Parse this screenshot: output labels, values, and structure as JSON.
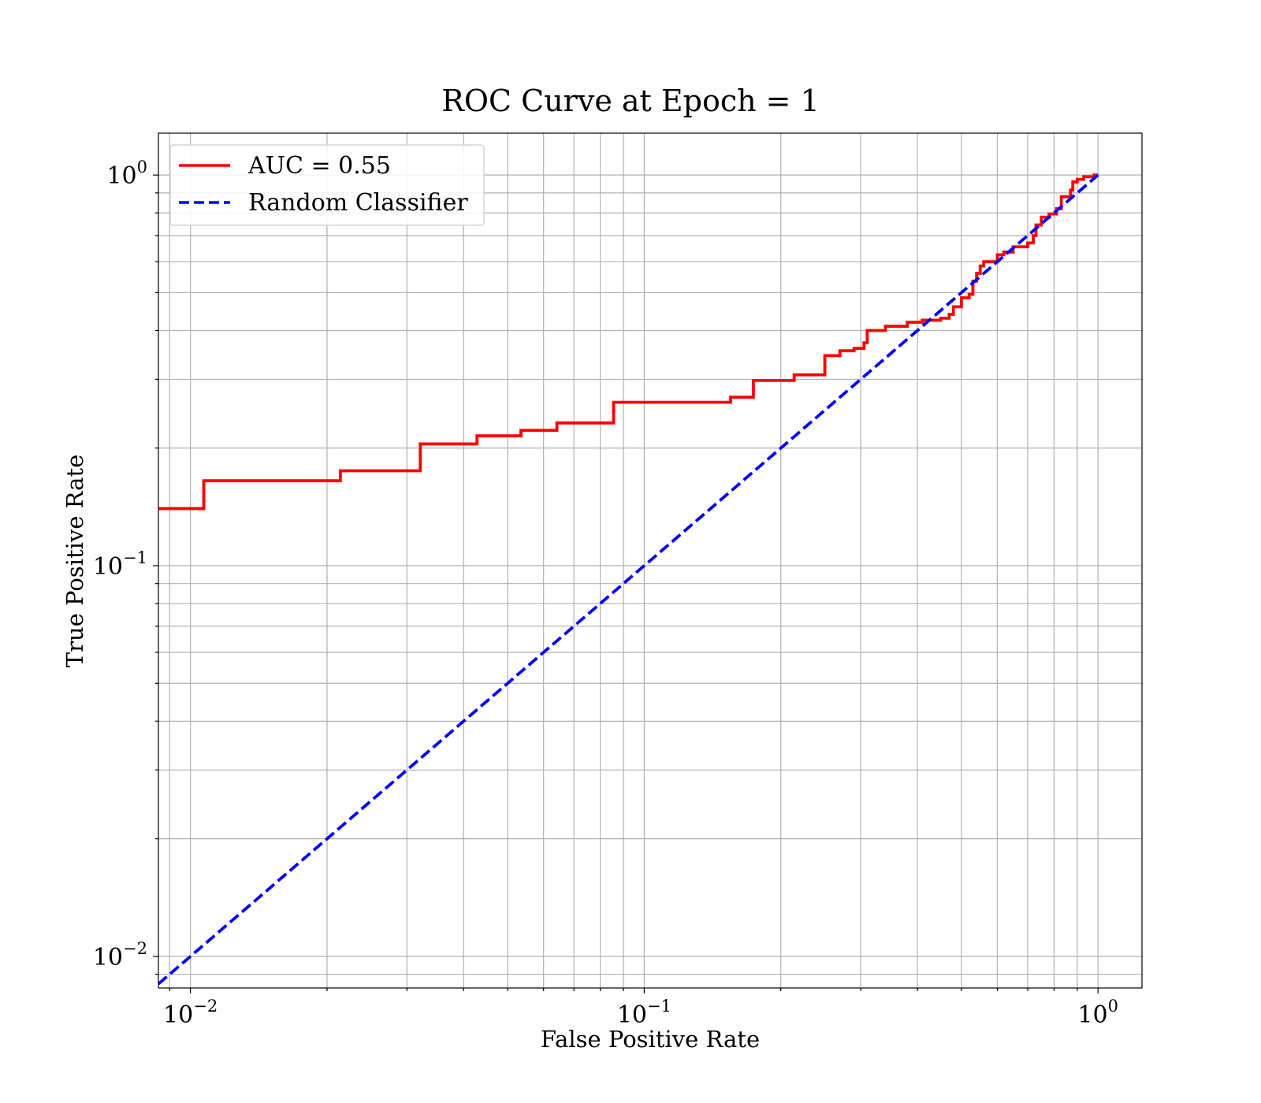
{
  "chart_data": {
    "type": "line",
    "title": "ROC Curve at Epoch = 1",
    "xlabel": "False Positive Rate",
    "ylabel": "True Positive Rate",
    "xscale": "log",
    "yscale": "log",
    "xlim": [
      0.0085,
      1.25
    ],
    "ylim": [
      0.0083,
      1.28
    ],
    "x_ticks": [
      {
        "value": 0.01,
        "base": "10",
        "exp": "−2"
      },
      {
        "value": 0.1,
        "base": "10",
        "exp": "−1"
      },
      {
        "value": 1,
        "base": "10",
        "exp": "0"
      }
    ],
    "y_ticks": [
      {
        "value": 0.01,
        "base": "10",
        "exp": "−2"
      },
      {
        "value": 0.1,
        "base": "10",
        "exp": "−1"
      },
      {
        "value": 1,
        "base": "10",
        "exp": "0"
      }
    ],
    "grid": true,
    "legend_position": "top-left",
    "series": [
      {
        "name": "AUC = 0.55",
        "color": "#ff0000",
        "style": "solid",
        "step": true,
        "x": [
          0.0085,
          0.0107,
          0.0107,
          0.0214,
          0.0214,
          0.0321,
          0.0321,
          0.0428,
          0.0428,
          0.0535,
          0.0535,
          0.0642,
          0.0642,
          0.0856,
          0.0856,
          0.155,
          0.155,
          0.174,
          0.174,
          0.214,
          0.214,
          0.25,
          0.25,
          0.27,
          0.27,
          0.29,
          0.29,
          0.305,
          0.305,
          0.31,
          0.31,
          0.34,
          0.34,
          0.38,
          0.38,
          0.41,
          0.41,
          0.45,
          0.45,
          0.47,
          0.47,
          0.48,
          0.48,
          0.5,
          0.5,
          0.52,
          0.52,
          0.53,
          0.53,
          0.54,
          0.54,
          0.55,
          0.55,
          0.56,
          0.56,
          0.6,
          0.6,
          0.62,
          0.62,
          0.65,
          0.65,
          0.7,
          0.7,
          0.72,
          0.72,
          0.73,
          0.73,
          0.75,
          0.75,
          0.78,
          0.78,
          0.81,
          0.81,
          0.83,
          0.83,
          0.87,
          0.87,
          0.88,
          0.88,
          0.9,
          0.9,
          0.93,
          0.93,
          0.98,
          0.98,
          1.0
        ],
        "y": [
          0.14,
          0.14,
          0.165,
          0.165,
          0.175,
          0.175,
          0.205,
          0.205,
          0.215,
          0.215,
          0.222,
          0.222,
          0.232,
          0.232,
          0.262,
          0.262,
          0.27,
          0.27,
          0.298,
          0.298,
          0.308,
          0.308,
          0.345,
          0.345,
          0.355,
          0.355,
          0.36,
          0.36,
          0.372,
          0.372,
          0.4,
          0.4,
          0.41,
          0.41,
          0.42,
          0.42,
          0.425,
          0.425,
          0.43,
          0.43,
          0.44,
          0.44,
          0.46,
          0.46,
          0.485,
          0.485,
          0.495,
          0.495,
          0.535,
          0.535,
          0.56,
          0.56,
          0.585,
          0.585,
          0.6,
          0.6,
          0.625,
          0.625,
          0.635,
          0.635,
          0.655,
          0.655,
          0.67,
          0.67,
          0.7,
          0.7,
          0.745,
          0.745,
          0.78,
          0.78,
          0.795,
          0.795,
          0.82,
          0.82,
          0.88,
          0.88,
          0.915,
          0.915,
          0.96,
          0.96,
          0.975,
          0.975,
          0.99,
          0.99,
          1.0,
          1.0
        ]
      },
      {
        "name": "Random Classifier",
        "color": "#0000ff",
        "style": "dashed",
        "x": [
          0.0085,
          1.0
        ],
        "y": [
          0.0085,
          1.0
        ]
      }
    ]
  }
}
